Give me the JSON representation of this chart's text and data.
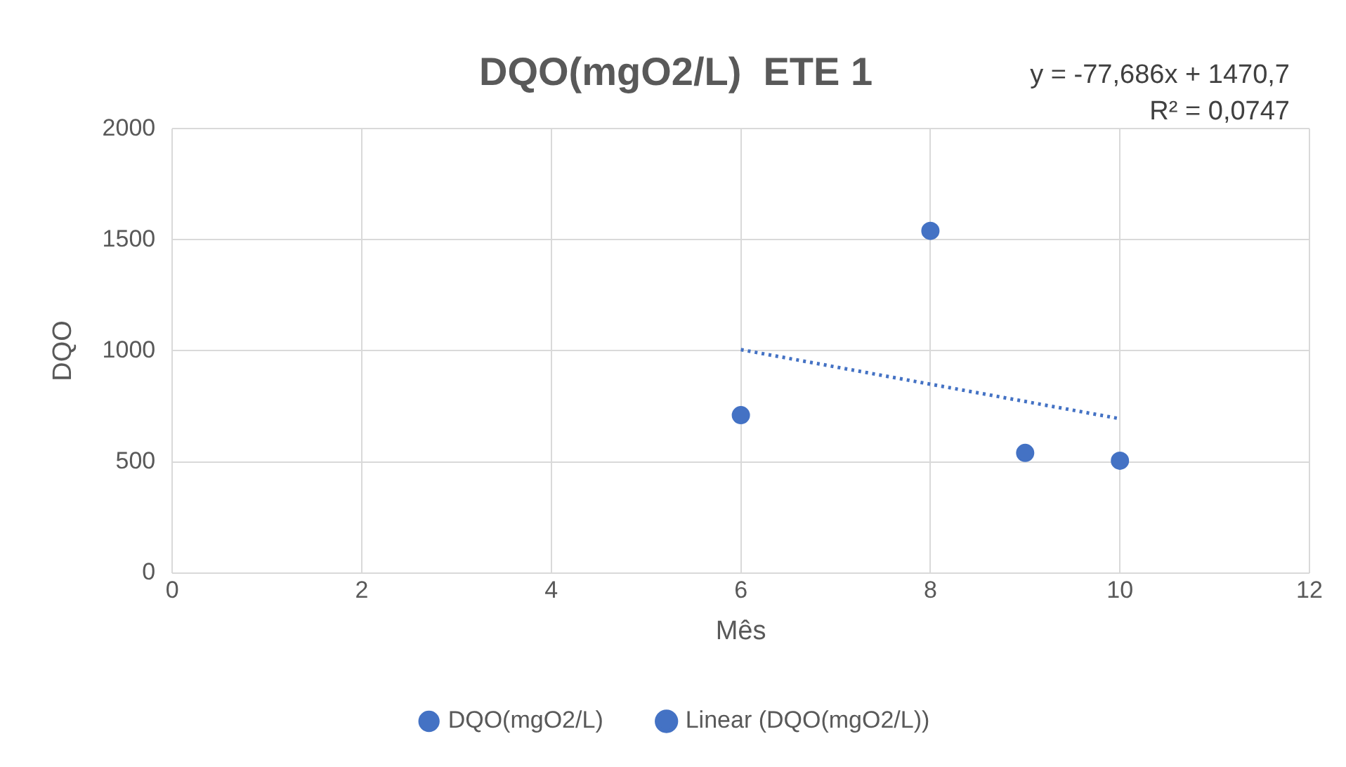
{
  "chart_data": {
    "type": "scatter",
    "title": "DQO(mgO2/L)  ETE 1",
    "xlabel": "Mês",
    "ylabel": "DQO",
    "annotations": [
      "y = -77,686x + 1470,7",
      "R² = 0,0747"
    ],
    "series": [
      {
        "name": "DQO(mgO2/L)",
        "type": "scatter",
        "color": "#4472c4",
        "x": [
          6,
          8,
          9,
          10
        ],
        "values": [
          710,
          1540,
          540,
          505
        ],
        "marker": "circle"
      },
      {
        "name": "Linear (DQO(mgO2/L))",
        "type": "line",
        "color": "#4472c4",
        "x": [
          6,
          10
        ],
        "values": [
          1005,
          694
        ],
        "line_style": "dotted",
        "marker": "none"
      }
    ],
    "xlim": [
      0,
      12
    ],
    "xticks": [
      0,
      2,
      4,
      6,
      8,
      10,
      12
    ],
    "ylim": [
      0,
      2000
    ],
    "yticks": [
      0,
      500,
      1000,
      1500,
      2000
    ],
    "grid": true,
    "legend": "bottom"
  }
}
